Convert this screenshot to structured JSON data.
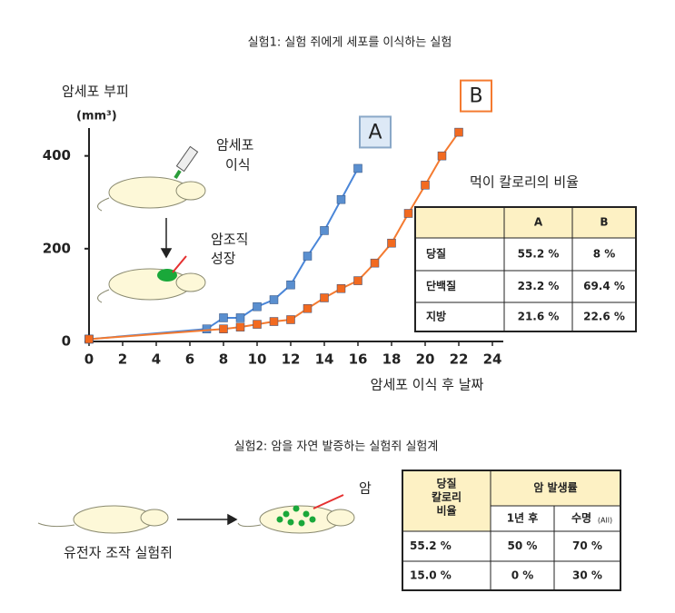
{
  "chart_data": {
    "type": "line",
    "title": "실험1: 실험 쥐에게 세포를 이식하는 실험",
    "y_label": "암세포 부피",
    "y_unit": "(mm³)",
    "x_label": "암세포 이식 후 날짜",
    "xlim": [
      0,
      24
    ],
    "xticks": [
      0,
      2,
      4,
      6,
      8,
      10,
      12,
      14,
      16,
      18,
      20,
      22,
      24
    ],
    "ylim": [
      0,
      460
    ],
    "yticks": [
      0,
      200,
      400
    ],
    "series": [
      {
        "name": "A",
        "color": "#4a86d8",
        "marker_color": "#5a8fcf",
        "x": [
          0,
          7,
          8,
          9,
          10,
          11,
          12,
          13,
          14,
          15,
          16
        ],
        "values": [
          5,
          27,
          51,
          51,
          75,
          90,
          122,
          184,
          239,
          306,
          373
        ]
      },
      {
        "name": "B",
        "color": "#f47a30",
        "marker_color": "#f26a20",
        "x": [
          0,
          8,
          9,
          10,
          11,
          12,
          13,
          14,
          15,
          16,
          17,
          18,
          19,
          20,
          21,
          22
        ],
        "values": [
          5,
          27,
          31,
          37,
          43,
          47,
          71,
          94,
          114,
          131,
          169,
          212,
          276,
          337,
          400,
          451
        ]
      }
    ],
    "annotations": {
      "injection": [
        "암세포",
        "이식"
      ],
      "growth": [
        "암조직",
        "성장"
      ]
    }
  },
  "diet_table": {
    "title": "먹이 칼로리의 비율",
    "columns": [
      "A",
      "B"
    ],
    "rows": [
      [
        "당질",
        "55.2 %",
        "8 %"
      ],
      [
        "단백질",
        "23.2 %",
        "69.4 %"
      ],
      [
        "지방",
        "21.6 %",
        "22.6 %"
      ]
    ]
  },
  "experiment2": {
    "title": "실험2: 암을 자연 발증하는 실험쥐 실험계",
    "mouse_label": "유전자 조작 실험쥐",
    "tumor_label": "암",
    "table": {
      "row_header": [
        "당질",
        "칼로리",
        "비율"
      ],
      "group_header": "암 발생률",
      "sub_headers": [
        "1년 후",
        "수명"
      ],
      "sub_header_note": "(All)",
      "rows": [
        [
          "55.2 %",
          "50 %",
          "70 %"
        ],
        [
          "15.0 %",
          "0 %",
          "30 %"
        ]
      ]
    }
  }
}
